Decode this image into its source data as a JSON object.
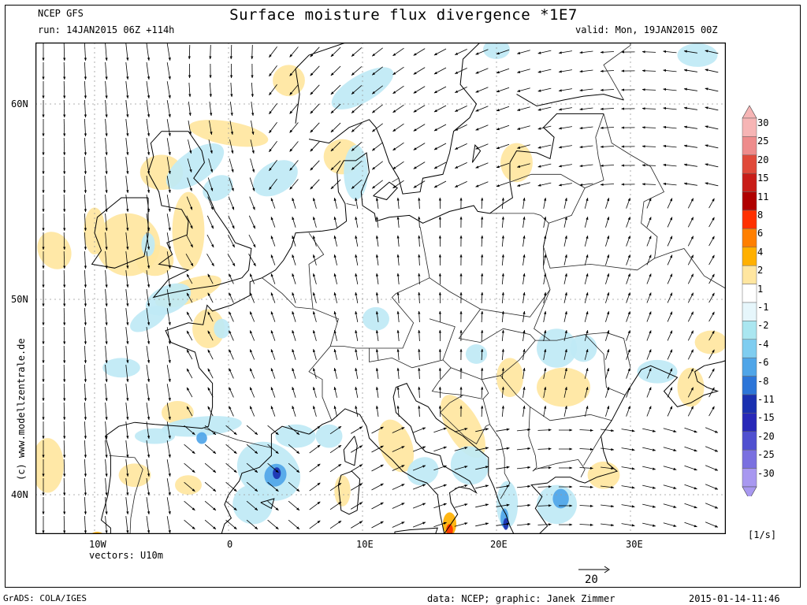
{
  "header": {
    "model": "NCEP GFS",
    "title": "Surface moisture flux divergence *1E7",
    "run": "run: 14JAN2015 06Z +114h",
    "valid": "valid: Mon, 19JAN2015 00Z"
  },
  "axes": {
    "lat_labels": [
      "60N",
      "50N",
      "40N"
    ],
    "lon_labels": [
      "10W",
      "0",
      "10E",
      "20E",
      "30E"
    ]
  },
  "vectors_label": "vectors: U10m",
  "scale_arrow_label": "20",
  "units": "[1/s]",
  "credit_vertical": "(c) www.modellzentrale.de",
  "footer": {
    "left": "GrADS: COLA/IGES",
    "center": "data: NCEP; graphic: Janek Zimmer",
    "right": "2015-01-14-11:46"
  },
  "legend": {
    "levels": [
      "30",
      "25",
      "20",
      "15",
      "11",
      "8",
      "6",
      "4",
      "2",
      "1",
      "-1",
      "-2",
      "-4",
      "-6",
      "-8",
      "-11",
      "-15",
      "-20",
      "-25",
      "-30"
    ],
    "colors": [
      "#f6b5b5",
      "#ee8c8c",
      "#e04a3a",
      "#c81d18",
      "#b00000",
      "#ff3000",
      "#ff7f00",
      "#ffb000",
      "#ffe6a0",
      "#ffffff",
      "#e6f6fb",
      "#aae6f0",
      "#7fcdf0",
      "#4fa5e8",
      "#2c75d8",
      "#1a30b0",
      "#2828b8",
      "#5050d0",
      "#7a70e0",
      "#a898f0"
    ]
  },
  "map_colors": {
    "positive": "#ffe6a0",
    "positive_strong": "#ffb000",
    "negative": "#bfe9f5",
    "negative_strong": "#4fa5e8",
    "extreme_pos": "#ff3000",
    "extreme_neg": "#1a30b0"
  }
}
